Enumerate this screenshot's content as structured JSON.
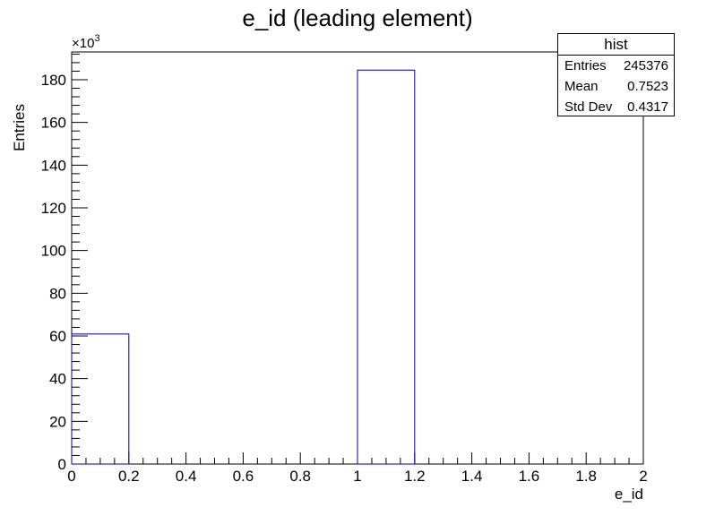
{
  "chart_data": {
    "type": "bar",
    "title": "e_id (leading element)",
    "xlabel": "e_id",
    "ylabel": "Entries",
    "y_multiplier": "×10",
    "y_multiplier_exp": "3",
    "xlim": [
      0,
      2
    ],
    "ylim": [
      0,
      193
    ],
    "bin_edges": [
      0,
      0.2,
      0.4,
      0.6,
      0.8,
      1.0,
      1.2,
      1.4,
      1.6,
      1.8,
      2.0
    ],
    "values": [
      60.9,
      0,
      0,
      0,
      0,
      184.5,
      0,
      0,
      0,
      0
    ],
    "x_ticks": [
      "0",
      "0.2",
      "0.4",
      "0.6",
      "0.8",
      "1",
      "1.2",
      "1.4",
      "1.6",
      "1.8",
      "2"
    ],
    "y_ticks": [
      "0",
      "20",
      "40",
      "60",
      "80",
      "100",
      "120",
      "140",
      "160",
      "180"
    ],
    "line_color": "#000099",
    "stats_box": {
      "title": "hist",
      "entries_label": "Entries",
      "entries_value": "245376",
      "mean_label": "Mean",
      "mean_value": "0.7523",
      "stddev_label": "Std Dev",
      "stddev_value": "0.4317"
    }
  }
}
